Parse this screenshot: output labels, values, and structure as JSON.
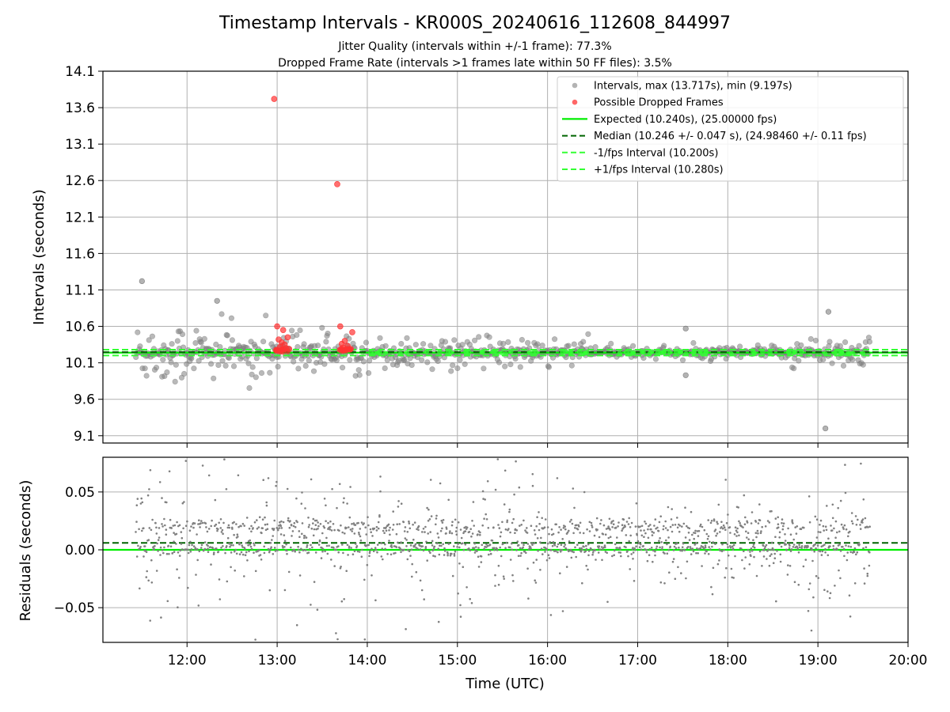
{
  "figure": {
    "title": "Timestamp Intervals - KR000S_20240616_112608_844997",
    "subtitle_1": "Jitter Quality (intervals within +/-1 frame): 77.3%",
    "subtitle_2": "Dropped Frame Rate (intervals >1 frames late within 50 FF files): 3.5%"
  },
  "colors": {
    "intervals": "#808080",
    "dropped": "#ff3333",
    "expected": "#00ee00",
    "median": "#006400",
    "fps_band": "#33ff33",
    "grid": "#b0b0b0"
  },
  "chart_data": [
    {
      "type": "scatter",
      "ylabel": "Intervals (seconds)",
      "xlim": [
        "11:04",
        "20:00"
      ],
      "ylim": [
        9.0,
        14.1
      ],
      "yticks": [
        "9.1",
        "9.6",
        "10.1",
        "10.6",
        "11.1",
        "11.6",
        "12.1",
        "12.6",
        "13.1",
        "13.6",
        "14.1"
      ],
      "grid": true,
      "legend_position": "top-right",
      "legend": [
        {
          "label": "Intervals, max (13.717s), min (9.197s)",
          "marker": "gray-dot"
        },
        {
          "label": "Possible Dropped Frames",
          "marker": "red-dot"
        },
        {
          "label": "Expected (10.240s), (25.00000 fps)",
          "marker": "solid-green-line"
        },
        {
          "label": "Median (10.246 +/- 0.047 s), (24.98460 +/- 0.11 fps)",
          "marker": "dashed-darkgreen-line"
        },
        {
          "label": "-1/fps Interval (10.200s)",
          "marker": "dashed-green-line"
        },
        {
          "label": "+1/fps Interval (10.280s)",
          "marker": "dashed-green-line"
        }
      ],
      "reference_lines": {
        "expected": 10.24,
        "median": 10.246,
        "minus_one_fps": 10.2,
        "plus_one_fps": 10.28
      },
      "series": [
        {
          "name": "Intervals",
          "start": "11:26",
          "end": "19:35",
          "count": 2864,
          "max": 13.717,
          "min": 9.197,
          "notable_points": [
            {
              "x": "11:30",
              "y": 11.22
            },
            {
              "x": "19:05",
              "y": 9.2
            },
            {
              "x": "19:07",
              "y": 10.8
            },
            {
              "x": "12:20",
              "y": 10.95
            },
            {
              "x": "17:32",
              "y": 10.57
            },
            {
              "x": "17:32",
              "y": 9.93
            }
          ]
        },
        {
          "name": "Possible Dropped Frames",
          "points": [
            {
              "x": "12:58",
              "y": 13.72
            },
            {
              "x": "13:40",
              "y": 12.55
            },
            {
              "x": "13:00",
              "y": 10.6
            },
            {
              "x": "13:04",
              "y": 10.55
            },
            {
              "x": "13:07",
              "y": 10.45
            },
            {
              "x": "13:01",
              "y": 10.42
            },
            {
              "x": "13:03",
              "y": 10.38
            },
            {
              "x": "13:05",
              "y": 10.35
            },
            {
              "x": "13:02",
              "y": 10.32
            },
            {
              "x": "13:06",
              "y": 10.3
            },
            {
              "x": "13:08",
              "y": 10.29
            },
            {
              "x": "13:42",
              "y": 10.6
            },
            {
              "x": "13:50",
              "y": 10.52
            },
            {
              "x": "13:45",
              "y": 10.4
            },
            {
              "x": "13:43",
              "y": 10.36
            },
            {
              "x": "13:47",
              "y": 10.33
            },
            {
              "x": "13:44",
              "y": 10.31
            },
            {
              "x": "13:49",
              "y": 10.29
            }
          ]
        }
      ]
    },
    {
      "type": "scatter",
      "xlabel": "Time (UTC)",
      "ylabel": "Residuals (seconds)",
      "xlim": [
        "11:04",
        "20:00"
      ],
      "ylim": [
        -0.08,
        0.08
      ],
      "xticks": [
        "12:00",
        "13:00",
        "14:00",
        "15:00",
        "16:00",
        "17:00",
        "18:00",
        "19:00",
        "20:00"
      ],
      "yticks": [
        "−0.05",
        "0.00",
        "0.05"
      ],
      "grid": true,
      "reference_lines": {
        "zero": 0.0,
        "median_offset": 0.006
      },
      "series": [
        {
          "name": "Residuals",
          "start": "11:26",
          "end": "19:35",
          "count": 2864,
          "bands": [
            0.0,
            0.02
          ]
        }
      ]
    }
  ]
}
